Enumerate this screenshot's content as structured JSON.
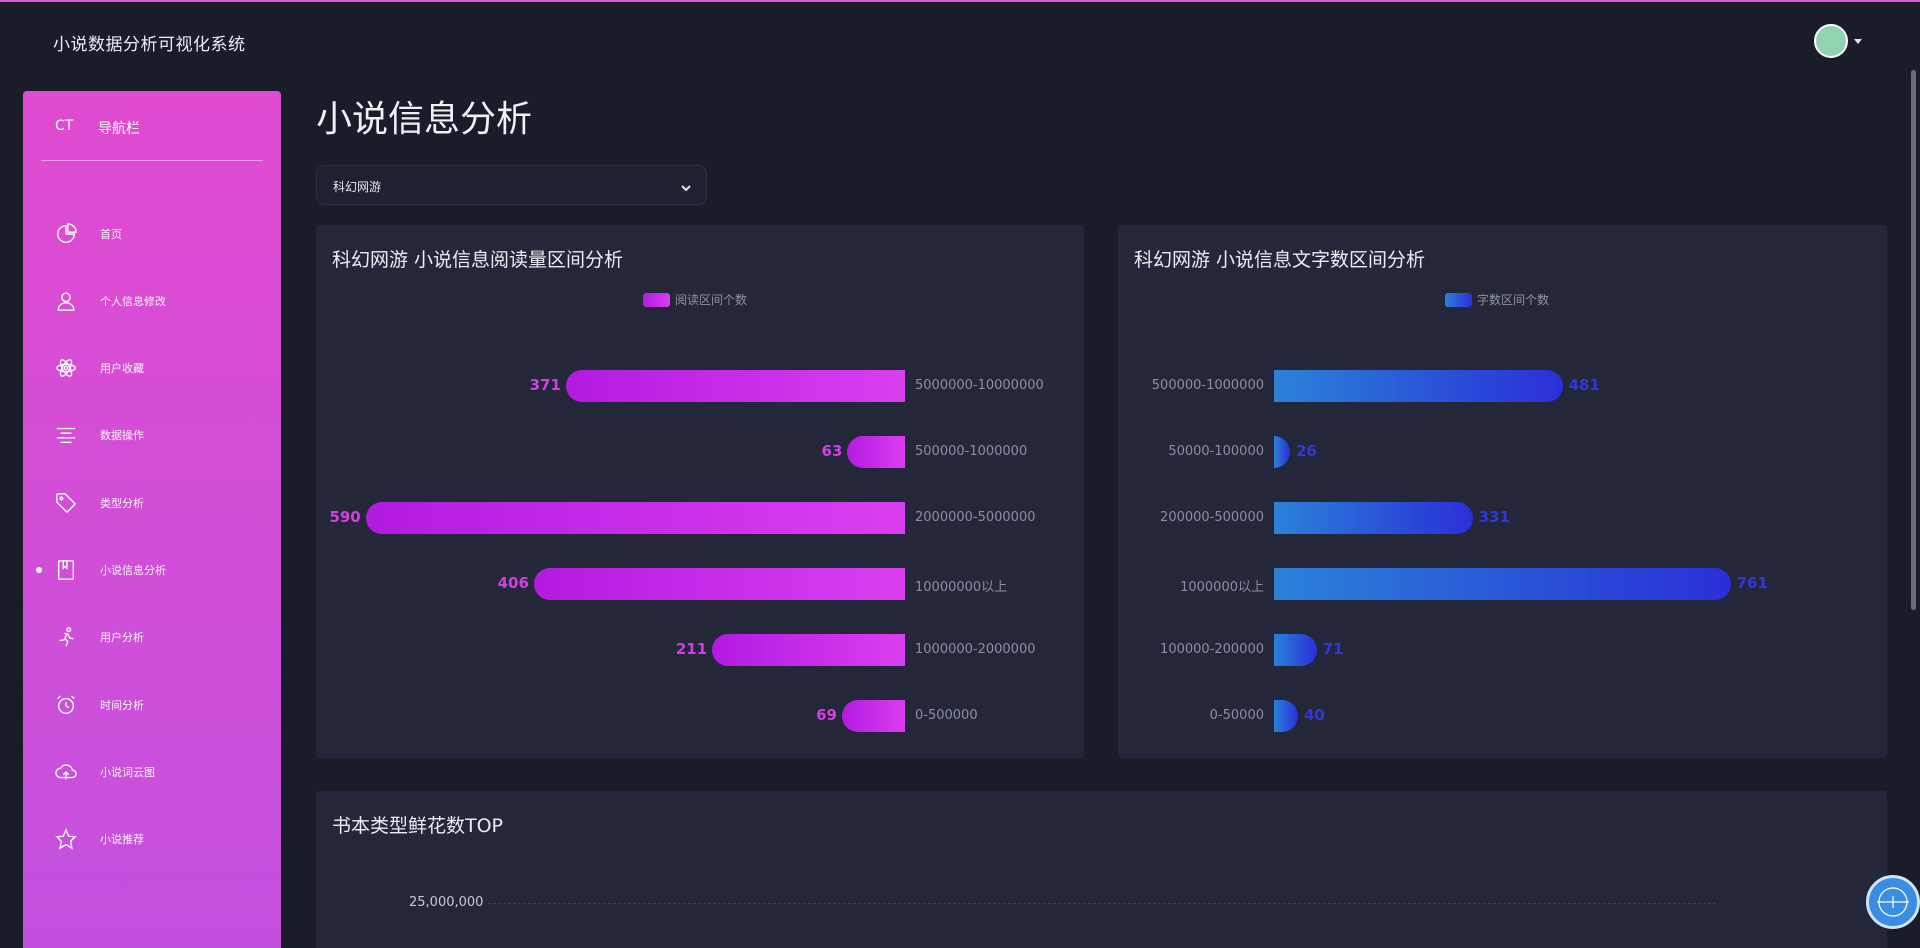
{
  "app": {
    "title": "小说数据分析可视化系统"
  },
  "sidebar": {
    "brand": "CT",
    "heading": "导航栏",
    "items": [
      {
        "label": "首页",
        "icon": "pie-chart-icon",
        "active": false
      },
      {
        "label": "个人信息修改",
        "icon": "user-icon",
        "active": false
      },
      {
        "label": "用户收藏",
        "icon": "atom-icon",
        "active": false
      },
      {
        "label": "数据操作",
        "icon": "align-center-icon",
        "active": false
      },
      {
        "label": "类型分析",
        "icon": "tag-icon",
        "active": false
      },
      {
        "label": "小说信息分析",
        "icon": "book-icon",
        "active": true
      },
      {
        "label": "用户分析",
        "icon": "running-icon",
        "active": false
      },
      {
        "label": "时间分析",
        "icon": "alarm-clock-icon",
        "active": false
      },
      {
        "label": "小说词云图",
        "icon": "cloud-upload-icon",
        "active": false
      },
      {
        "label": "小说推荐",
        "icon": "star-icon",
        "active": false
      }
    ]
  },
  "main": {
    "title": "小说信息分析",
    "category_select": {
      "value": "科幻网游"
    }
  },
  "colors": {
    "read_bar_start": "#b21be0",
    "read_bar_end": "#db3ef0",
    "read_value": "#d23fe4",
    "word_bar_start": "#2a82d8",
    "word_bar_end": "#2a2fd8",
    "word_value": "#2f39d6"
  },
  "chart_data": [
    {
      "type": "bar",
      "orientation": "horizontal",
      "title": "科幻网游 小说信息阅读量区间分析",
      "legend": "阅读区间个数",
      "categories": [
        "5000000-10000000",
        "500000-1000000",
        "2000000-5000000",
        "10000000以上",
        "1000000-2000000",
        "0-500000"
      ],
      "values": [
        371,
        63,
        590,
        406,
        211,
        69
      ],
      "value_labels": [
        "371",
        "63",
        "590",
        "406",
        "211",
        "69"
      ]
    },
    {
      "type": "bar",
      "orientation": "horizontal",
      "title": "科幻网游 小说信息文字数区间分析",
      "legend": "字数区间个数",
      "categories": [
        "500000-1000000",
        "50000-100000",
        "200000-500000",
        "1000000以上",
        "100000-200000",
        "0-50000"
      ],
      "values": [
        481,
        26,
        331,
        761,
        71,
        40
      ],
      "value_labels": [
        "481",
        "26",
        "331",
        "761",
        "71",
        "40"
      ]
    },
    {
      "type": "bar",
      "title": "书本类型鲜花数TOP",
      "y_tick_labels": [
        "25,000,000"
      ],
      "grid": true
    }
  ]
}
